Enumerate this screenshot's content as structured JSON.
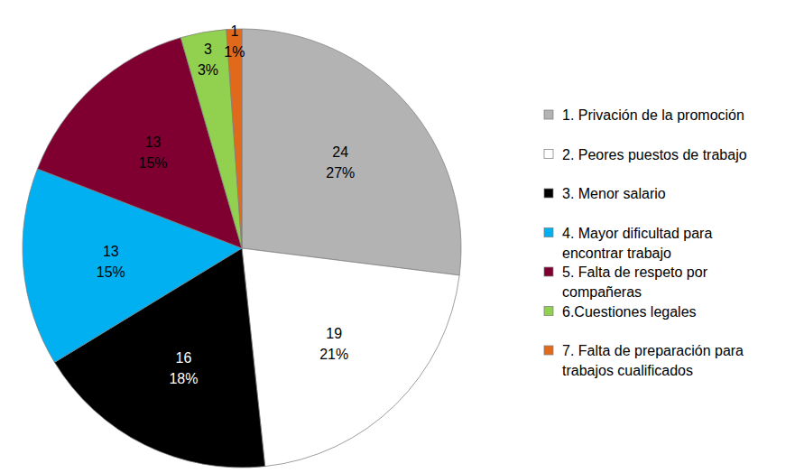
{
  "chart_data": {
    "type": "pie",
    "categories": [
      "1. Privación de la promoción",
      "2. Peores puestos de trabajo",
      "3. Menor salario",
      "4. Mayor dificultad para encontrar trabajo",
      "5. Falta de respeto por compañeras",
      "6.Cuestiones legales",
      "7. Falta de preparación para trabajos cualificados"
    ],
    "values": [
      24,
      19,
      16,
      13,
      13,
      3,
      1
    ],
    "percent_labels": [
      "27%",
      "21%",
      "18%",
      "15%",
      "15%",
      "3%",
      "1%"
    ],
    "colors": [
      "#b3b3b3",
      "#ffffff",
      "#000000",
      "#00b0f0",
      "#7f0030",
      "#92d050",
      "#e0691c"
    ],
    "data_labels": true,
    "legend": "right"
  }
}
